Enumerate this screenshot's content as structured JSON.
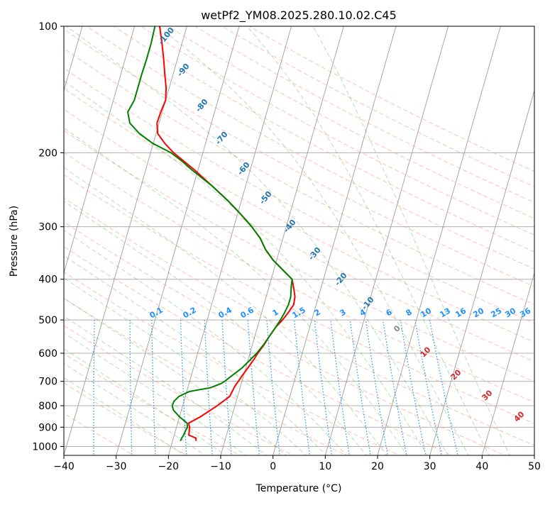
{
  "chart_data": {
    "type": "line",
    "subtype": "skew-T log-P diagram",
    "title": "wetPf2_YM08.2025.280.10.02.C45",
    "xlabel": "Temperature (°C)",
    "ylabel": "Pressure (hPa)",
    "xlim": [
      -40,
      50
    ],
    "ylim": [
      1050,
      100
    ],
    "y_scale": "log",
    "grid": true,
    "x_ticks": [
      -40,
      -30,
      -20,
      -10,
      0,
      10,
      20,
      30,
      40,
      50
    ],
    "y_ticks": [
      100,
      200,
      300,
      400,
      500,
      600,
      700,
      800,
      900,
      1000
    ],
    "series": [
      {
        "role": "temperature",
        "color": "#ff0000",
        "points": [
          {
            "p": 970,
            "t": -15.5
          },
          {
            "p": 955,
            "t": -15.7
          },
          {
            "p": 940,
            "t": -17.2
          },
          {
            "p": 900,
            "t": -17.5
          },
          {
            "p": 880,
            "t": -17.9
          },
          {
            "p": 850,
            "t": -16.0
          },
          {
            "p": 800,
            "t": -13.4
          },
          {
            "p": 760,
            "t": -11.5
          },
          {
            "p": 720,
            "t": -11.1
          },
          {
            "p": 700,
            "t": -10.7
          },
          {
            "p": 680,
            "t": -10.3
          },
          {
            "p": 650,
            "t": -9.6
          },
          {
            "p": 620,
            "t": -8.9
          },
          {
            "p": 600,
            "t": -8.5
          },
          {
            "p": 570,
            "t": -7.7
          },
          {
            "p": 550,
            "t": -7.3
          },
          {
            "p": 520,
            "t": -6.5
          },
          {
            "p": 500,
            "t": -5.6
          },
          {
            "p": 480,
            "t": -4.9
          },
          {
            "p": 460,
            "t": -4.3
          },
          {
            "p": 440,
            "t": -4.5
          },
          {
            "p": 420,
            "t": -5.2
          },
          {
            "p": 400,
            "t": -6.0
          },
          {
            "p": 380,
            "t": -8.3
          },
          {
            "p": 360,
            "t": -10.7
          },
          {
            "p": 340,
            "t": -12.7
          },
          {
            "p": 320,
            "t": -14.3
          },
          {
            "p": 300,
            "t": -16.6
          },
          {
            "p": 280,
            "t": -19.4
          },
          {
            "p": 260,
            "t": -22.6
          },
          {
            "p": 240,
            "t": -26.4
          },
          {
            "p": 220,
            "t": -30.6
          },
          {
            "p": 200,
            "t": -35.6
          },
          {
            "p": 190,
            "t": -37.8
          },
          {
            "p": 180,
            "t": -39.7
          },
          {
            "p": 170,
            "t": -40.4
          },
          {
            "p": 160,
            "t": -40.3
          },
          {
            "p": 150,
            "t": -40.0
          },
          {
            "p": 140,
            "t": -40.6
          },
          {
            "p": 130,
            "t": -41.6
          },
          {
            "p": 120,
            "t": -42.6
          },
          {
            "p": 110,
            "t": -43.8
          },
          {
            "p": 100,
            "t": -45.2
          }
        ]
      },
      {
        "role": "dewpoint",
        "color": "#008000",
        "points": [
          {
            "p": 970,
            "t": -18.5
          },
          {
            "p": 955,
            "t": -18.4
          },
          {
            "p": 940,
            "t": -18.2
          },
          {
            "p": 920,
            "t": -18.1
          },
          {
            "p": 900,
            "t": -17.9
          },
          {
            "p": 880,
            "t": -18.2
          },
          {
            "p": 850,
            "t": -20.0
          },
          {
            "p": 820,
            "t": -21.5
          },
          {
            "p": 800,
            "t": -22.0
          },
          {
            "p": 780,
            "t": -21.9
          },
          {
            "p": 760,
            "t": -21.2
          },
          {
            "p": 740,
            "t": -19.5
          },
          {
            "p": 725,
            "t": -15.7
          },
          {
            "p": 710,
            "t": -14.0
          },
          {
            "p": 700,
            "t": -13.3
          },
          {
            "p": 680,
            "t": -12.3
          },
          {
            "p": 650,
            "t": -10.7
          },
          {
            "p": 600,
            "t": -8.7
          },
          {
            "p": 570,
            "t": -7.8
          },
          {
            "p": 550,
            "t": -7.3
          },
          {
            "p": 520,
            "t": -6.5
          },
          {
            "p": 500,
            "t": -6.0
          },
          {
            "p": 480,
            "t": -5.6
          },
          {
            "p": 460,
            "t": -5.3
          },
          {
            "p": 440,
            "t": -5.3
          },
          {
            "p": 420,
            "t": -5.7
          },
          {
            "p": 400,
            "t": -6.0
          },
          {
            "p": 380,
            "t": -8.3
          },
          {
            "p": 360,
            "t": -10.7
          },
          {
            "p": 340,
            "t": -12.7
          },
          {
            "p": 320,
            "t": -14.3
          },
          {
            "p": 300,
            "t": -16.6
          },
          {
            "p": 280,
            "t": -19.4
          },
          {
            "p": 260,
            "t": -22.6
          },
          {
            "p": 240,
            "t": -26.4
          },
          {
            "p": 220,
            "t": -31.1
          },
          {
            "p": 210,
            "t": -33.4
          },
          {
            "p": 200,
            "t": -36.1
          },
          {
            "p": 190,
            "t": -40.1
          },
          {
            "p": 180,
            "t": -43.2
          },
          {
            "p": 170,
            "t": -45.6
          },
          {
            "p": 160,
            "t": -46.6
          },
          {
            "p": 150,
            "t": -46.0
          },
          {
            "p": 140,
            "t": -46.0
          },
          {
            "p": 130,
            "t": -46.0
          },
          {
            "p": 120,
            "t": -45.9
          },
          {
            "p": 110,
            "t": -45.9
          },
          {
            "p": 100,
            "t": -46.1
          }
        ]
      }
    ],
    "dry_adiabat_labels": [
      "-100",
      "-90",
      "-80",
      "-70",
      "-60",
      "-50",
      "-40",
      "-30",
      "-20",
      "-10"
    ],
    "mixing_ratio_labels": [
      "0.1",
      "0.2",
      "0.4",
      "0.6",
      "1",
      "1.5",
      "2",
      "3",
      "4",
      "6",
      "8",
      "10",
      "13",
      "16",
      "20",
      "25",
      "30",
      "36"
    ],
    "moist_adiabat_labels": [
      "0",
      "10",
      "20",
      "30",
      "40"
    ],
    "colors": {
      "isotherm": "#a8a8a8",
      "dry_adiabat": "#ff8c69",
      "moist_adiabat": "#2ca02c",
      "mixing_ratio": "#1e90ff",
      "isobar": "#b0b0b0",
      "dry_label": "#1f77b4",
      "moist_label_zero": "#888888",
      "moist_label": "#d62728"
    }
  }
}
